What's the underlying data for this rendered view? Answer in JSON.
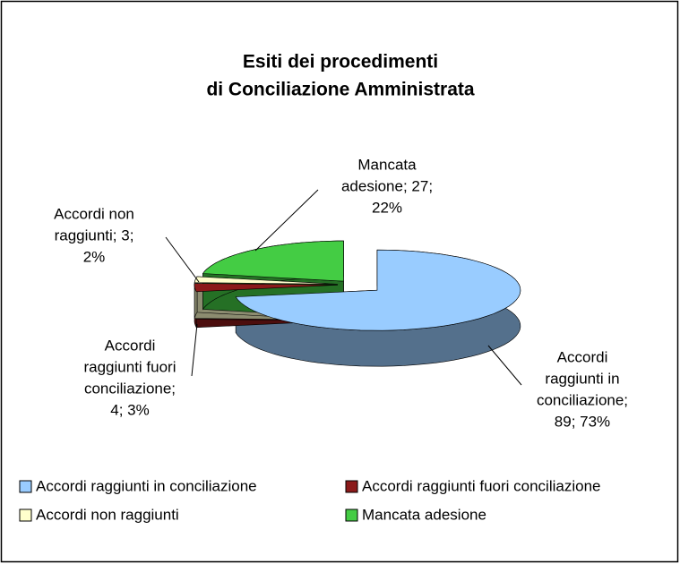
{
  "chart_data": {
    "type": "pie3d",
    "title": [
      "Esiti dei procedimenti",
      "di Conciliazione Amministrata"
    ],
    "categories": [
      "Accordi raggiunti in conciliazione",
      "Accordi raggiunti fuori conciliazione",
      "Accordi non raggiunti",
      "Mancata adesione"
    ],
    "values": [
      89,
      4,
      3,
      27
    ],
    "value_labels": [
      [
        "Accordi",
        "raggiunti in",
        "conciliazione;",
        "89; 73%"
      ],
      [
        "Accordi",
        "raggiunti fuori",
        "conciliazione;",
        "4; 3%"
      ],
      [
        "Accordi non",
        "raggiunti; 3;",
        "2%"
      ],
      [
        "Mancata",
        "adesione; 27;",
        "22%"
      ]
    ],
    "colors": [
      "#99ccff",
      "#8b1a1a",
      "#ffffcc",
      "#44cc44"
    ],
    "legend": "bottom"
  }
}
